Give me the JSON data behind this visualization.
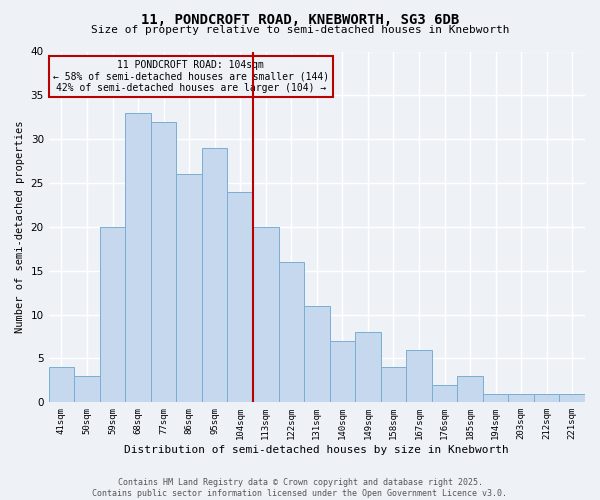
{
  "title": "11, PONDCROFT ROAD, KNEBWORTH, SG3 6DB",
  "subtitle": "Size of property relative to semi-detached houses in Knebworth",
  "xlabel": "Distribution of semi-detached houses by size in Knebworth",
  "ylabel": "Number of semi-detached properties",
  "categories": [
    "41sqm",
    "50sqm",
    "59sqm",
    "68sqm",
    "77sqm",
    "86sqm",
    "95sqm",
    "104sqm",
    "113sqm",
    "122sqm",
    "131sqm",
    "140sqm",
    "149sqm",
    "158sqm",
    "167sqm",
    "176sqm",
    "185sqm",
    "194sqm",
    "203sqm",
    "212sqm",
    "221sqm"
  ],
  "values": [
    4,
    3,
    20,
    33,
    32,
    26,
    29,
    24,
    20,
    16,
    11,
    7,
    8,
    4,
    6,
    2,
    3,
    1,
    1,
    1,
    1
  ],
  "bar_color": "#c5d8ed",
  "bar_edge_color": "#7aaed4",
  "highlight_index": 7,
  "highlight_color": "#bb0000",
  "annotation_title": "11 PONDCROFT ROAD: 104sqm",
  "annotation_line1": "← 58% of semi-detached houses are smaller (144)",
  "annotation_line2": "42% of semi-detached houses are larger (104) →",
  "ylim": [
    0,
    40
  ],
  "yticks": [
    0,
    5,
    10,
    15,
    20,
    25,
    30,
    35,
    40
  ],
  "footer1": "Contains HM Land Registry data © Crown copyright and database right 2025.",
  "footer2": "Contains public sector information licensed under the Open Government Licence v3.0.",
  "bg_color": "#eef2f7"
}
